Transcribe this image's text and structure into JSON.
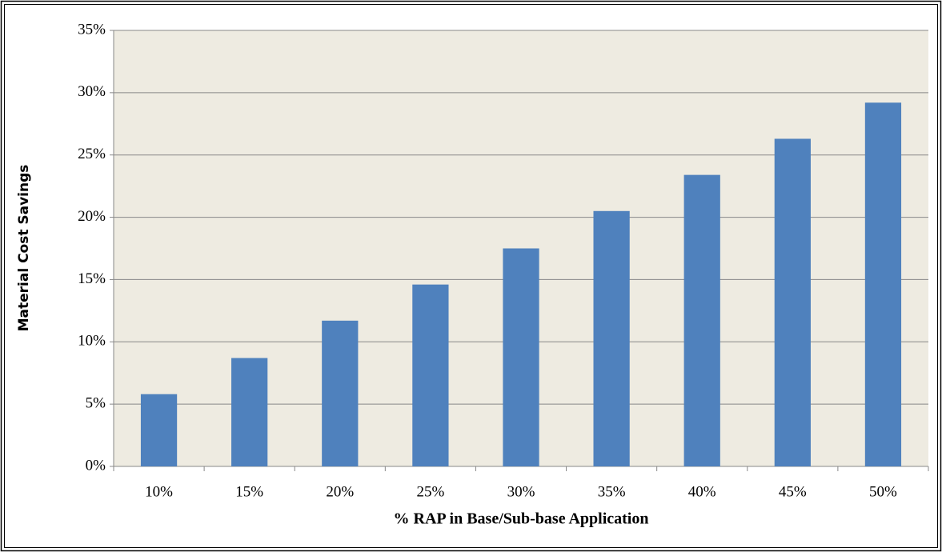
{
  "chart_data": {
    "type": "bar",
    "categories": [
      "10%",
      "15%",
      "20%",
      "25%",
      "30%",
      "35%",
      "40%",
      "45%",
      "50%"
    ],
    "values": [
      5.8,
      8.7,
      11.7,
      14.6,
      17.5,
      20.5,
      23.4,
      26.3,
      29.2
    ],
    "color": "#4f81bd",
    "ylim": [
      0,
      35
    ],
    "yticks": [
      {
        "value": 0,
        "label": "0%"
      },
      {
        "value": 5,
        "label": "5%"
      },
      {
        "value": 10,
        "label": "10%"
      },
      {
        "value": 15,
        "label": "15%"
      },
      {
        "value": 20,
        "label": "20%"
      },
      {
        "value": 25,
        "label": "25%"
      },
      {
        "value": 30,
        "label": "30%"
      },
      {
        "value": 35,
        "label": "35%"
      }
    ],
    "y_label": "Material Cost Savings",
    "x_label": "% RAP in Base/Sub-base Application",
    "grid": true
  }
}
